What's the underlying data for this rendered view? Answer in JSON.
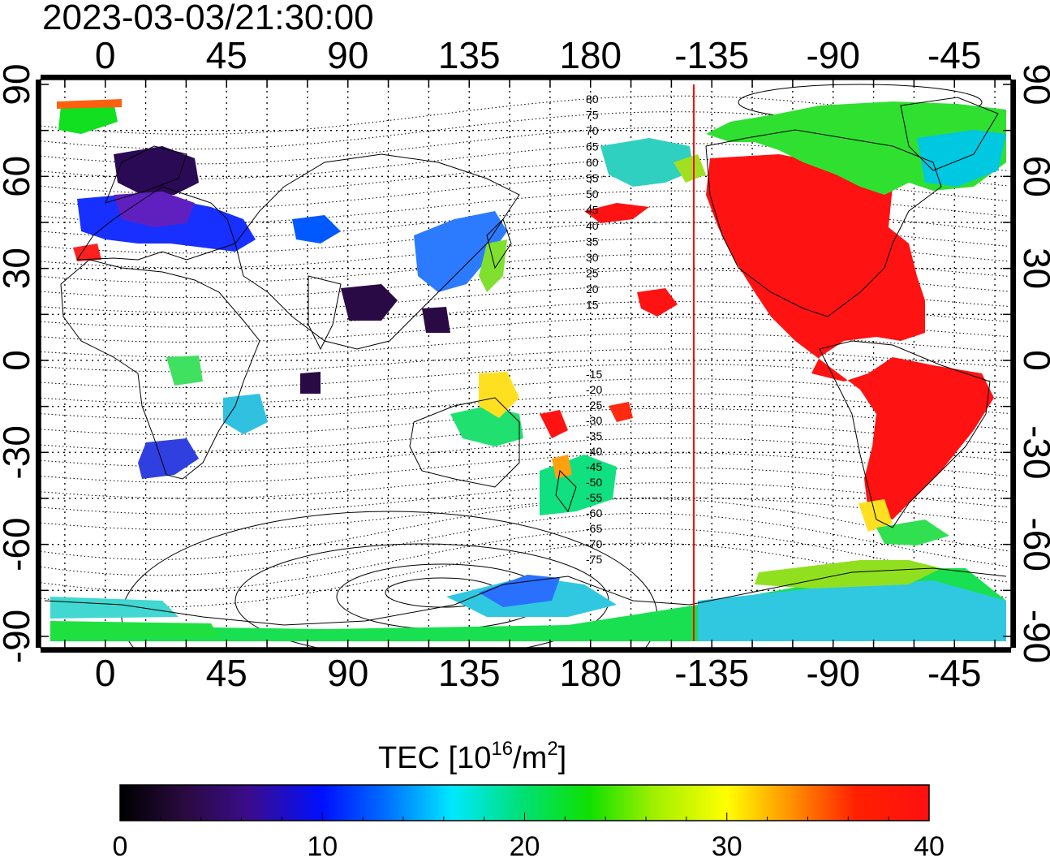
{
  "title": "2023-03-03/21:30:00",
  "map": {
    "top_axis_ticks": [
      "0",
      "45",
      "90",
      "135",
      "180",
      "-135",
      "-90",
      "-45"
    ],
    "bottom_axis_ticks": [
      "0",
      "45",
      "90",
      "135",
      "180",
      "-135",
      "-90",
      "-45"
    ],
    "left_axis_ticks": [
      "90",
      "60",
      "30",
      "0",
      "-30",
      "-60",
      "-90"
    ],
    "right_axis_ticks": [
      "90",
      "60",
      "30",
      "0",
      "-30",
      "-60",
      "-90"
    ],
    "magnetic_contour_labels": [
      "80",
      "75",
      "70",
      "65",
      "60",
      "55",
      "50",
      "45",
      "40",
      "35",
      "30",
      "25",
      "20",
      "15",
      "-15",
      "-20",
      "-25",
      "-30",
      "-35",
      "-40",
      "-45",
      "-50",
      "-55",
      "-60",
      "-65",
      "-70",
      "-75"
    ],
    "terminator_color": "#ff0000"
  },
  "colorbar": {
    "label_main": "TEC  [10",
    "label_sup1": "16",
    "label_mid": "/m",
    "label_sup2": "2",
    "label_end": "]",
    "ticks": [
      "0",
      "10",
      "20",
      "30",
      "40"
    ],
    "range": [
      0,
      40
    ]
  }
}
